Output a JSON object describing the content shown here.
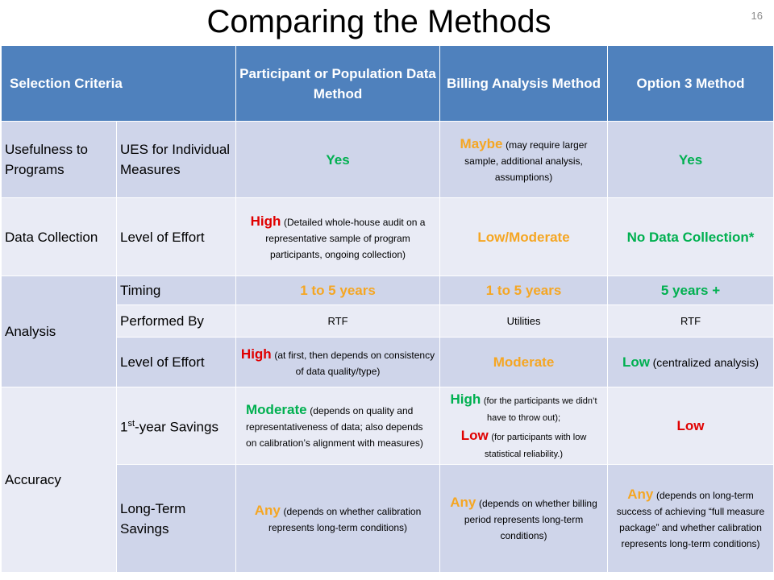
{
  "title": "Comparing the Methods",
  "slide_number": "16",
  "colors": {
    "header_bg": "#4f81bd",
    "row_dark": "#cfd5ea",
    "row_light": "#e9ebf5",
    "green": "#00b050",
    "orange": "#f5a623",
    "red": "#e00000"
  },
  "header": {
    "criteria": "Selection Criteria",
    "method1": "Participant or Population Data Method",
    "method2": "Billing Analysis Method",
    "method3": "Option 3 Method"
  },
  "rows": {
    "usefulness": {
      "criterion": "Usefulness to Programs",
      "sub": "UES for Individual Measures",
      "m1": {
        "value": "Yes"
      },
      "m2": {
        "value": "Maybe",
        "note": "(may require larger sample, additional analysis, assumptions)"
      },
      "m3": {
        "value": "Yes"
      }
    },
    "data_collection": {
      "criterion": "Data Collection",
      "sub": "Level of Effort",
      "m1": {
        "value": "High",
        "note": "(Detailed whole-house audit on a representative sample of program participants, ongoing collection)"
      },
      "m2": {
        "value": "Low/Moderate"
      },
      "m3": {
        "value": "No Data Collection*"
      }
    },
    "analysis": {
      "criterion": "Analysis",
      "timing": {
        "sub": "Timing",
        "m1": "1 to 5 years",
        "m2": "1 to 5 years",
        "m3": "5 years +"
      },
      "performed_by": {
        "sub": "Performed By",
        "m1": "RTF",
        "m2": "Utilities",
        "m3": "RTF"
      },
      "effort": {
        "sub": "Level of Effort",
        "m1": {
          "value": "High",
          "note": "(at first, then depends on consistency of data quality/type)"
        },
        "m2": {
          "value": "Moderate"
        },
        "m3": {
          "value": "Low",
          "note": "(centralized analysis)"
        }
      }
    },
    "accuracy": {
      "criterion": "Accuracy",
      "first_year": {
        "sub_prefix": "1",
        "sub_sup": "st",
        "sub_suffix": "-year Savings",
        "m1": {
          "value": "Moderate",
          "note": "(depends on quality and representativeness of data; also depends on calibration’s alignment with measures)"
        },
        "m2": {
          "value_a": "High",
          "note_a": "(for the participants we didn’t have to throw out);",
          "value_b": "Low",
          "note_b": "(for participants with low statistical reliability.)"
        },
        "m3": {
          "value": "Low"
        }
      },
      "long_term": {
        "sub": "Long-Term Savings",
        "m1": {
          "value": "Any",
          "note": "(depends on whether calibration represents long-term conditions)"
        },
        "m2": {
          "value": "Any",
          "note": "(depends on whether billing period represents long-term conditions)"
        },
        "m3": {
          "value": "Any",
          "note": "(depends on long-term success of achieving “full measure package” and whether calibration represents long-term conditions)"
        }
      }
    }
  }
}
